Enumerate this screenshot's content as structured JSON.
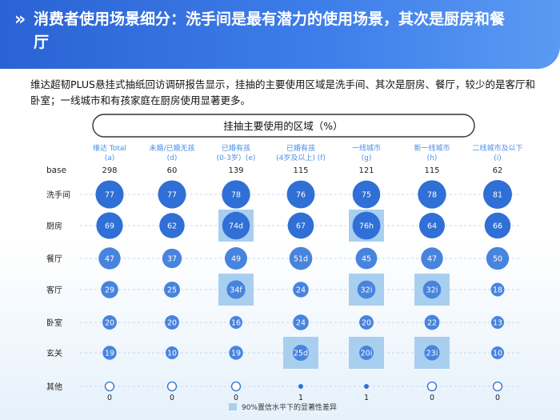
{
  "header": {
    "icon": "double-chevron-right-icon",
    "title": "消费者使用场景细分：洗手间是最有潜力的使用场景，其次是厨房和餐厅"
  },
  "intro": "维达超韧PLUS悬挂式抽纸回访调研报告显示，挂抽的主要使用区域是洗手间、其次是厨房、餐厅，较少的是客厅和卧室；一线城市和有孩家庭在厨房使用显著更多。",
  "colors": {
    "bubble_dark": "#2f6fd6",
    "bubble_mid": "#4784de",
    "highlight": "#a9cff0",
    "header": "#2a63d4",
    "accent_text": "#4a8ee6"
  },
  "chart_data": {
    "type": "bubble-table",
    "title": "挂抽主要使用的区域（%）",
    "base_label": "base",
    "columns": [
      {
        "name": "维达 Total",
        "code": "(a)",
        "base": "298"
      },
      {
        "name": "未婚/已婚无孩",
        "code": "(d)",
        "base": "60"
      },
      {
        "name": "已婚有孩",
        "code": "(0-3岁）(e)",
        "base": "139"
      },
      {
        "name": "已婚有孩",
        "code": "(4岁及以上) (f)",
        "base": "115"
      },
      {
        "name": "一线城市",
        "code": "(g)",
        "base": "121"
      },
      {
        "name": "新一线城市",
        "code": "(h)",
        "base": "115"
      },
      {
        "name": "二线城市及以下",
        "code": "(i)",
        "base": "62"
      }
    ],
    "rows": [
      {
        "name": "洗手间",
        "values": [
          77,
          77,
          78,
          76,
          75,
          78,
          81
        ],
        "labels": [
          "77",
          "77",
          "78",
          "76",
          "75",
          "78",
          "81"
        ],
        "significant": [
          false,
          false,
          false,
          false,
          false,
          false,
          false
        ]
      },
      {
        "name": "厨房",
        "values": [
          69,
          62,
          74,
          67,
          76,
          64,
          66
        ],
        "labels": [
          "69",
          "62",
          "74d",
          "67",
          "76h",
          "64",
          "66"
        ],
        "significant": [
          false,
          false,
          true,
          false,
          true,
          false,
          false
        ]
      },
      {
        "name": "餐厅",
        "values": [
          47,
          37,
          49,
          51,
          45,
          47,
          50
        ],
        "labels": [
          "47",
          "37",
          "49",
          "51d",
          "45",
          "47",
          "50"
        ],
        "significant": [
          false,
          false,
          false,
          false,
          false,
          false,
          false
        ]
      },
      {
        "name": "客厅",
        "values": [
          29,
          25,
          34,
          24,
          32,
          32,
          18
        ],
        "labels": [
          "29",
          "25",
          "34f",
          "24",
          "32i",
          "32i",
          "18"
        ],
        "significant": [
          false,
          false,
          true,
          false,
          true,
          true,
          false
        ]
      },
      {
        "name": "卧室",
        "values": [
          20,
          20,
          16,
          24,
          20,
          22,
          13
        ],
        "labels": [
          "20",
          "20",
          "16",
          "24",
          "20",
          "22",
          "13"
        ],
        "significant": [
          false,
          false,
          false,
          false,
          false,
          false,
          false
        ]
      },
      {
        "name": "玄关",
        "values": [
          19,
          10,
          19,
          25,
          20,
          23,
          10
        ],
        "labels": [
          "19",
          "10",
          "19",
          "25d",
          "20i",
          "23i",
          "10"
        ],
        "significant": [
          false,
          false,
          false,
          true,
          true,
          true,
          false
        ]
      },
      {
        "name": "其他",
        "values": [
          0,
          0,
          0,
          1,
          1,
          0,
          0
        ],
        "labels": [
          "0",
          "0",
          "0",
          "1",
          "1",
          "0",
          "0"
        ],
        "significant": [
          false,
          false,
          false,
          false,
          false,
          false,
          false
        ]
      }
    ],
    "legend": "90%置信水平下的显著性差异"
  }
}
